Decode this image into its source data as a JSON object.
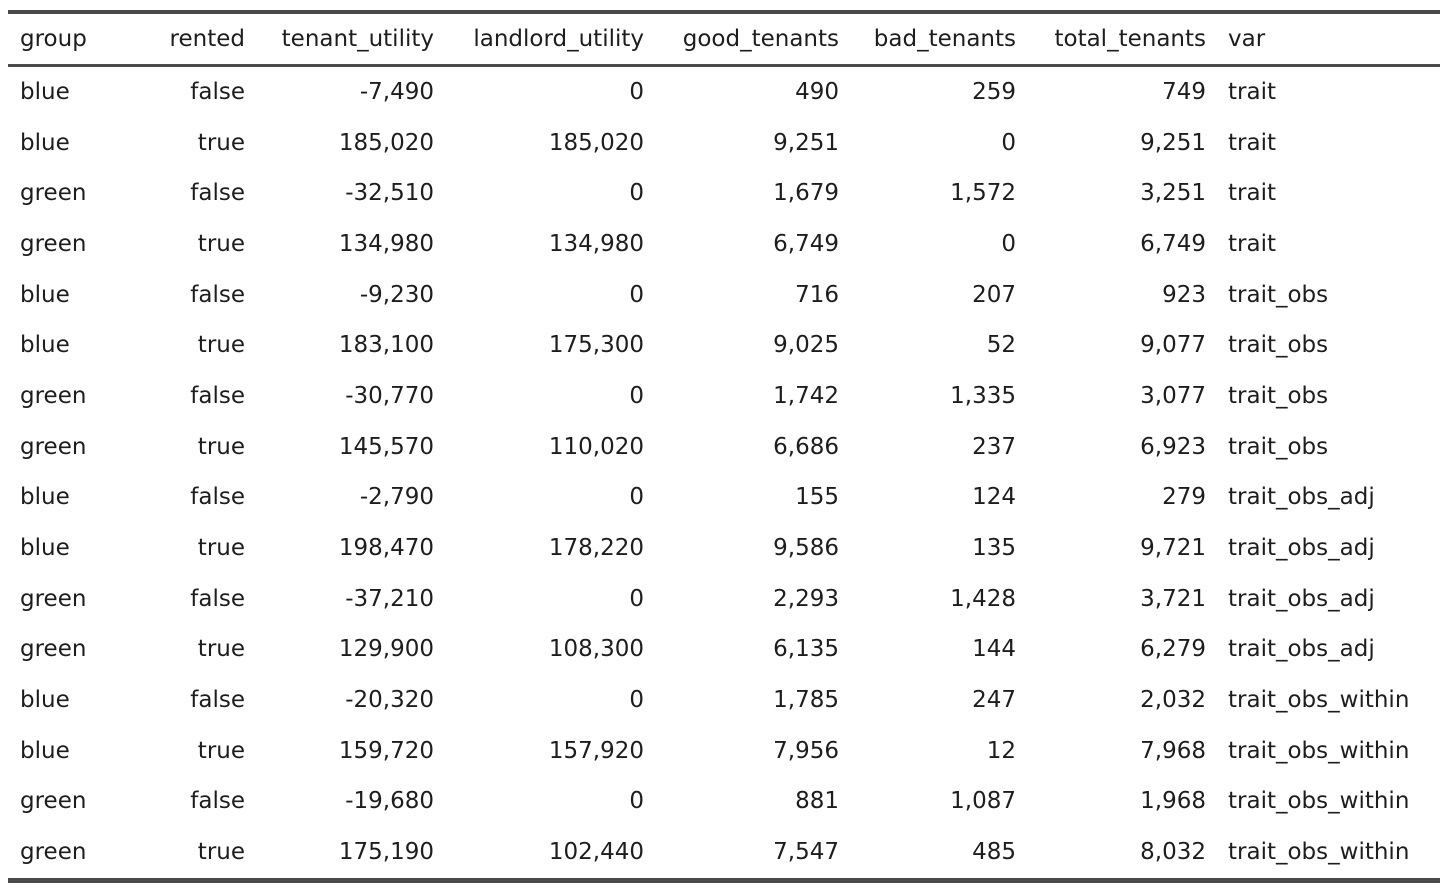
{
  "table": {
    "columns": [
      {
        "key": "group",
        "label": "group"
      },
      {
        "key": "rented",
        "label": "rented"
      },
      {
        "key": "tenant_utility",
        "label": "tenant_utility"
      },
      {
        "key": "landlord_utility",
        "label": "landlord_utility"
      },
      {
        "key": "good_tenants",
        "label": "good_tenants"
      },
      {
        "key": "bad_tenants",
        "label": "bad_tenants"
      },
      {
        "key": "total_tenants",
        "label": "total_tenants"
      },
      {
        "key": "var",
        "label": "var"
      }
    ],
    "rows": [
      [
        "blue",
        "false",
        "-7,490",
        "0",
        "490",
        "259",
        "749",
        "trait"
      ],
      [
        "blue",
        "true",
        "185,020",
        "185,020",
        "9,251",
        "0",
        "9,251",
        "trait"
      ],
      [
        "green",
        "false",
        "-32,510",
        "0",
        "1,679",
        "1,572",
        "3,251",
        "trait"
      ],
      [
        "green",
        "true",
        "134,980",
        "134,980",
        "6,749",
        "0",
        "6,749",
        "trait"
      ],
      [
        "blue",
        "false",
        "-9,230",
        "0",
        "716",
        "207",
        "923",
        "trait_obs"
      ],
      [
        "blue",
        "true",
        "183,100",
        "175,300",
        "9,025",
        "52",
        "9,077",
        "trait_obs"
      ],
      [
        "green",
        "false",
        "-30,770",
        "0",
        "1,742",
        "1,335",
        "3,077",
        "trait_obs"
      ],
      [
        "green",
        "true",
        "145,570",
        "110,020",
        "6,686",
        "237",
        "6,923",
        "trait_obs"
      ],
      [
        "blue",
        "false",
        "-2,790",
        "0",
        "155",
        "124",
        "279",
        "trait_obs_adj"
      ],
      [
        "blue",
        "true",
        "198,470",
        "178,220",
        "9,586",
        "135",
        "9,721",
        "trait_obs_adj"
      ],
      [
        "green",
        "false",
        "-37,210",
        "0",
        "2,293",
        "1,428",
        "3,721",
        "trait_obs_adj"
      ],
      [
        "green",
        "true",
        "129,900",
        "108,300",
        "6,135",
        "144",
        "6,279",
        "trait_obs_adj"
      ],
      [
        "blue",
        "false",
        "-20,320",
        "0",
        "1,785",
        "247",
        "2,032",
        "trait_obs_within"
      ],
      [
        "blue",
        "true",
        "159,720",
        "157,920",
        "7,956",
        "12",
        "7,968",
        "trait_obs_within"
      ],
      [
        "green",
        "false",
        "-19,680",
        "0",
        "881",
        "1,087",
        "1,968",
        "trait_obs_within"
      ],
      [
        "green",
        "true",
        "175,190",
        "102,440",
        "7,547",
        "485",
        "8,032",
        "trait_obs_within"
      ]
    ],
    "colors": {
      "text": "#1d1d1d",
      "rule": "#4a4a4a",
      "background": "#ffffff"
    }
  },
  "chart_data": {
    "type": "table",
    "title": "",
    "columns": [
      "group",
      "rented",
      "tenant_utility",
      "landlord_utility",
      "good_tenants",
      "bad_tenants",
      "total_tenants",
      "var"
    ],
    "rows": [
      {
        "group": "blue",
        "rented": false,
        "tenant_utility": -7490,
        "landlord_utility": 0,
        "good_tenants": 490,
        "bad_tenants": 259,
        "total_tenants": 749,
        "var": "trait"
      },
      {
        "group": "blue",
        "rented": true,
        "tenant_utility": 185020,
        "landlord_utility": 185020,
        "good_tenants": 9251,
        "bad_tenants": 0,
        "total_tenants": 9251,
        "var": "trait"
      },
      {
        "group": "green",
        "rented": false,
        "tenant_utility": -32510,
        "landlord_utility": 0,
        "good_tenants": 1679,
        "bad_tenants": 1572,
        "total_tenants": 3251,
        "var": "trait"
      },
      {
        "group": "green",
        "rented": true,
        "tenant_utility": 134980,
        "landlord_utility": 134980,
        "good_tenants": 6749,
        "bad_tenants": 0,
        "total_tenants": 6749,
        "var": "trait"
      },
      {
        "group": "blue",
        "rented": false,
        "tenant_utility": -9230,
        "landlord_utility": 0,
        "good_tenants": 716,
        "bad_tenants": 207,
        "total_tenants": 923,
        "var": "trait_obs"
      },
      {
        "group": "blue",
        "rented": true,
        "tenant_utility": 183100,
        "landlord_utility": 175300,
        "good_tenants": 9025,
        "bad_tenants": 52,
        "total_tenants": 9077,
        "var": "trait_obs"
      },
      {
        "group": "green",
        "rented": false,
        "tenant_utility": -30770,
        "landlord_utility": 0,
        "good_tenants": 1742,
        "bad_tenants": 1335,
        "total_tenants": 3077,
        "var": "trait_obs"
      },
      {
        "group": "green",
        "rented": true,
        "tenant_utility": 145570,
        "landlord_utility": 110020,
        "good_tenants": 6686,
        "bad_tenants": 237,
        "total_tenants": 6923,
        "var": "trait_obs"
      },
      {
        "group": "blue",
        "rented": false,
        "tenant_utility": -2790,
        "landlord_utility": 0,
        "good_tenants": 155,
        "bad_tenants": 124,
        "total_tenants": 279,
        "var": "trait_obs_adj"
      },
      {
        "group": "blue",
        "rented": true,
        "tenant_utility": 198470,
        "landlord_utility": 178220,
        "good_tenants": 9586,
        "bad_tenants": 135,
        "total_tenants": 9721,
        "var": "trait_obs_adj"
      },
      {
        "group": "green",
        "rented": false,
        "tenant_utility": -37210,
        "landlord_utility": 0,
        "good_tenants": 2293,
        "bad_tenants": 1428,
        "total_tenants": 3721,
        "var": "trait_obs_adj"
      },
      {
        "group": "green",
        "rented": true,
        "tenant_utility": 129900,
        "landlord_utility": 108300,
        "good_tenants": 6135,
        "bad_tenants": 144,
        "total_tenants": 6279,
        "var": "trait_obs_adj"
      },
      {
        "group": "blue",
        "rented": false,
        "tenant_utility": -20320,
        "landlord_utility": 0,
        "good_tenants": 1785,
        "bad_tenants": 247,
        "total_tenants": 2032,
        "var": "trait_obs_within"
      },
      {
        "group": "blue",
        "rented": true,
        "tenant_utility": 159720,
        "landlord_utility": 157920,
        "good_tenants": 7956,
        "bad_tenants": 12,
        "total_tenants": 7968,
        "var": "trait_obs_within"
      },
      {
        "group": "green",
        "rented": false,
        "tenant_utility": -19680,
        "landlord_utility": 0,
        "good_tenants": 881,
        "bad_tenants": 1087,
        "total_tenants": 1968,
        "var": "trait_obs_within"
      },
      {
        "group": "green",
        "rented": true,
        "tenant_utility": 175190,
        "landlord_utility": 102440,
        "good_tenants": 7547,
        "bad_tenants": 485,
        "total_tenants": 8032,
        "var": "trait_obs_within"
      }
    ],
    "layout_hints": {
      "left_aligned_columns": [
        "group",
        "var"
      ],
      "right_aligned_columns": [
        "rented",
        "tenant_utility",
        "landlord_utility",
        "good_tenants",
        "bad_tenants",
        "total_tenants"
      ],
      "grid": false,
      "rules": [
        "top",
        "below-header",
        "bottom"
      ]
    }
  }
}
